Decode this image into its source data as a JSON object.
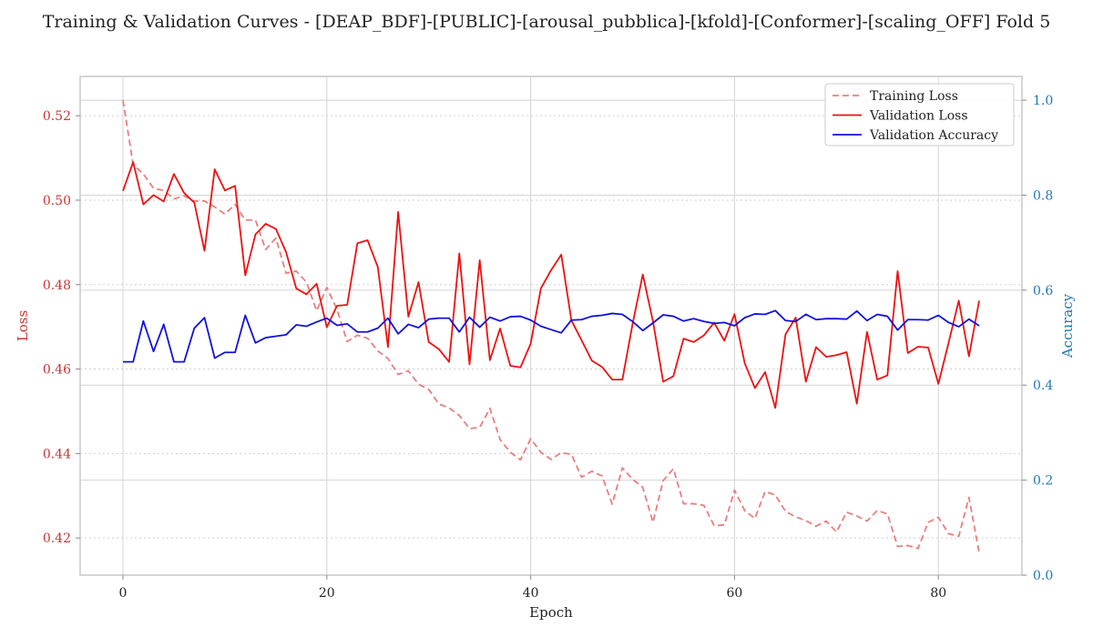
{
  "chart_data": {
    "type": "line",
    "title": "Training & Validation Curves - [DEAP_BDF]-[PUBLIC]-[arousal_pubblica]-[kfold]-[Conformer]-[scaling_OFF] Fold 5",
    "xlabel": "Epoch",
    "ylabel": "Loss",
    "y2label": "Accuracy",
    "xlim": [
      -4.2,
      88.2
    ],
    "ylim": [
      0.4112,
      0.5293
    ],
    "y2lim": [
      0.0,
      1.05
    ],
    "xticks": [
      "0",
      "20",
      "40",
      "60",
      "80"
    ],
    "xtick_values": [
      0,
      20,
      40,
      60,
      80
    ],
    "yticks": [
      "0.42",
      "0.44",
      "0.46",
      "0.48",
      "0.50",
      "0.52"
    ],
    "ytick_values": [
      0.42,
      0.44,
      0.46,
      0.48,
      0.5,
      0.52
    ],
    "y2ticks": [
      "0.0",
      "0.2",
      "0.4",
      "0.6",
      "0.8",
      "1.0"
    ],
    "y2tick_values": [
      0.0,
      0.2,
      0.4,
      0.6,
      0.8,
      1.0
    ],
    "legend_position": "top-right",
    "grid": true,
    "x": [
      0,
      1,
      2,
      3,
      4,
      5,
      6,
      7,
      8,
      9,
      10,
      11,
      12,
      13,
      14,
      15,
      16,
      17,
      18,
      19,
      20,
      21,
      22,
      23,
      24,
      25,
      26,
      27,
      28,
      29,
      30,
      31,
      32,
      33,
      34,
      35,
      36,
      37,
      38,
      39,
      40,
      41,
      42,
      43,
      44,
      45,
      46,
      47,
      48,
      49,
      50,
      51,
      52,
      53,
      54,
      55,
      56,
      57,
      58,
      59,
      60,
      61,
      62,
      63,
      64,
      65,
      66,
      67,
      68,
      69,
      70,
      71,
      72,
      73,
      74,
      75,
      76,
      77,
      78,
      79,
      80,
      81,
      82,
      83,
      84
    ],
    "series": [
      {
        "name": "Training Loss",
        "color": "#e87f7f",
        "style": "dashed",
        "axis": "left",
        "values": [
          0.5237,
          0.5084,
          0.5062,
          0.5028,
          0.5023,
          0.5003,
          0.501,
          0.4998,
          0.4998,
          0.4984,
          0.4967,
          0.499,
          0.4953,
          0.4953,
          0.4883,
          0.491,
          0.4827,
          0.4832,
          0.4806,
          0.4738,
          0.4793,
          0.4741,
          0.4665,
          0.468,
          0.4673,
          0.4643,
          0.4625,
          0.4587,
          0.4596,
          0.4564,
          0.4552,
          0.4517,
          0.4508,
          0.449,
          0.4459,
          0.4462,
          0.4507,
          0.4433,
          0.4403,
          0.4385,
          0.4435,
          0.4403,
          0.4386,
          0.4402,
          0.4398,
          0.4344,
          0.4358,
          0.4347,
          0.428,
          0.4366,
          0.4339,
          0.432,
          0.4237,
          0.4336,
          0.4364,
          0.4281,
          0.4281,
          0.4277,
          0.4229,
          0.4231,
          0.4313,
          0.4265,
          0.4246,
          0.431,
          0.4302,
          0.4263,
          0.425,
          0.4241,
          0.4228,
          0.424,
          0.4214,
          0.4261,
          0.4252,
          0.424,
          0.4265,
          0.4257,
          0.418,
          0.4182,
          0.4175,
          0.4237,
          0.4249,
          0.421,
          0.4204,
          0.4296,
          0.4165
        ]
      },
      {
        "name": "Validation Loss",
        "color": "#ee1111",
        "style": "solid",
        "axis": "left",
        "values": [
          0.5022,
          0.509,
          0.499,
          0.5012,
          0.4997,
          0.5062,
          0.5017,
          0.4994,
          0.488,
          0.5073,
          0.5023,
          0.5034,
          0.4822,
          0.4919,
          0.4944,
          0.4932,
          0.4877,
          0.4791,
          0.4777,
          0.4802,
          0.4699,
          0.475,
          0.4752,
          0.4898,
          0.4905,
          0.4842,
          0.4652,
          0.4972,
          0.4724,
          0.4806,
          0.4664,
          0.4647,
          0.4617,
          0.4874,
          0.4611,
          0.4858,
          0.4621,
          0.4696,
          0.4608,
          0.4604,
          0.466,
          0.4791,
          0.4834,
          0.4871,
          0.4715,
          0.4668,
          0.462,
          0.4605,
          0.4575,
          0.4575,
          0.4707,
          0.4824,
          0.4713,
          0.457,
          0.4583,
          0.4672,
          0.4664,
          0.468,
          0.471,
          0.4667,
          0.473,
          0.4614,
          0.4555,
          0.4593,
          0.4508,
          0.4682,
          0.4722,
          0.457,
          0.4652,
          0.4629,
          0.4633,
          0.464,
          0.4518,
          0.4688,
          0.4575,
          0.4585,
          0.4832,
          0.4638,
          0.4653,
          0.4651,
          0.4565,
          0.4662,
          0.4762,
          0.463,
          0.4762
        ]
      },
      {
        "name": "Validation Accuracy",
        "color": "#1111dd",
        "style": "solid",
        "axis": "right",
        "values": [
          0.449,
          0.449,
          0.535,
          0.471,
          0.528,
          0.449,
          0.449,
          0.52,
          0.542,
          0.457,
          0.469,
          0.469,
          0.547,
          0.489,
          0.5,
          0.503,
          0.506,
          0.527,
          0.524,
          0.533,
          0.541,
          0.526,
          0.529,
          0.512,
          0.512,
          0.52,
          0.541,
          0.508,
          0.528,
          0.521,
          0.539,
          0.541,
          0.541,
          0.512,
          0.543,
          0.522,
          0.543,
          0.535,
          0.544,
          0.545,
          0.537,
          0.524,
          0.517,
          0.51,
          0.537,
          0.538,
          0.545,
          0.547,
          0.551,
          0.549,
          0.534,
          0.515,
          0.531,
          0.548,
          0.545,
          0.535,
          0.54,
          0.534,
          0.53,
          0.532,
          0.525,
          0.542,
          0.55,
          0.549,
          0.557,
          0.536,
          0.534,
          0.549,
          0.538,
          0.54,
          0.54,
          0.539,
          0.556,
          0.536,
          0.549,
          0.545,
          0.516,
          0.538,
          0.538,
          0.537,
          0.547,
          0.532,
          0.523,
          0.539,
          0.525
        ]
      }
    ]
  }
}
